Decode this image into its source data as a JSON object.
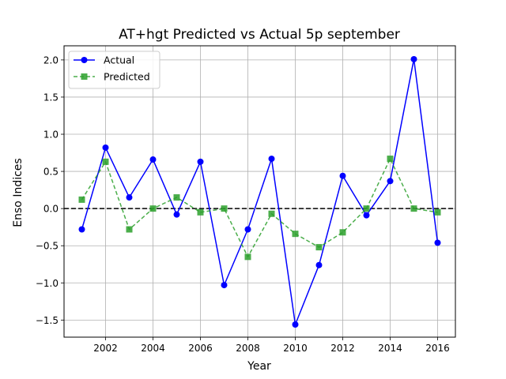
{
  "chart_data": {
    "type": "line",
    "title": "AT+hgt Predicted vs Actual 5p september",
    "xlabel": "Year",
    "ylabel": "Enso Indices",
    "xlim": [
      2000.25,
      2016.75
    ],
    "ylim": [
      -1.73,
      2.19
    ],
    "x_ticks": [
      2002,
      2004,
      2006,
      2008,
      2010,
      2012,
      2014,
      2016
    ],
    "y_ticks": [
      -1.5,
      -1.0,
      -0.5,
      0.0,
      0.5,
      1.0,
      1.5,
      2.0
    ],
    "y_tick_labels": [
      "−1.5",
      "−1.0",
      "−0.5",
      "0.0",
      "0.5",
      "1.0",
      "1.5",
      "2.0"
    ],
    "grid": true,
    "legend_position": "upper-left",
    "reference_line": {
      "y": 0,
      "style": "dashed",
      "color": "#000000"
    },
    "x": [
      2001,
      2002,
      2003,
      2004,
      2005,
      2006,
      2007,
      2008,
      2009,
      2010,
      2011,
      2012,
      2013,
      2014,
      2015,
      2016
    ],
    "series": [
      {
        "name": "Actual",
        "color": "#0000ff",
        "style": "solid",
        "marker": "circle",
        "values": [
          -0.28,
          0.82,
          0.15,
          0.66,
          -0.08,
          0.63,
          -1.03,
          -0.28,
          0.67,
          -1.56,
          -0.76,
          0.44,
          -0.09,
          0.37,
          2.01,
          -0.46
        ]
      },
      {
        "name": "Predicted",
        "color": "#2ca02c",
        "style": "dashed",
        "marker": "square",
        "values": [
          0.12,
          0.63,
          -0.28,
          0.0,
          0.15,
          -0.05,
          0.0,
          -0.65,
          -0.07,
          -0.34,
          -0.52,
          -0.32,
          0.0,
          0.67,
          0.0,
          -0.05
        ]
      }
    ]
  }
}
